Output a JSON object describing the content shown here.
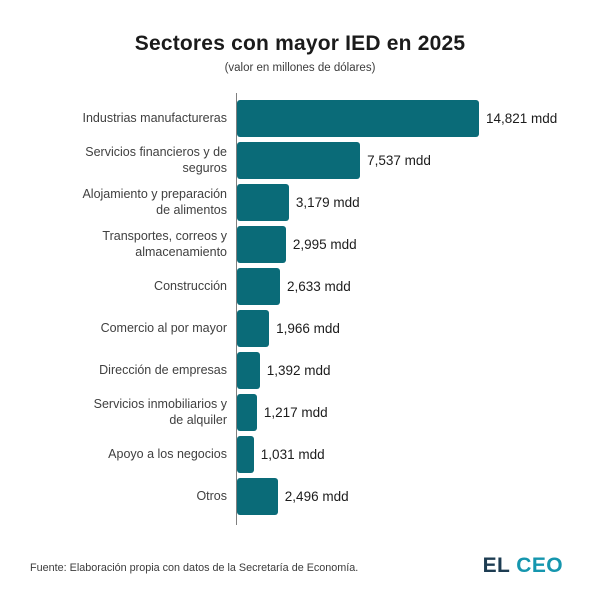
{
  "header": {
    "title": "Sectores con mayor IED en 2025",
    "subtitle": "(valor en millones de dólares)"
  },
  "chart_data": {
    "type": "bar",
    "orientation": "horizontal",
    "title": "Sectores con mayor IED en 2025",
    "subtitle": "(valor en millones de dólares)",
    "unit": "mdd (millones de dólares)",
    "xlim": [
      0,
      15000
    ],
    "grid": false,
    "legend": false,
    "bar_color": "#0A6B78",
    "axis_color": "#7f7f7f",
    "categories": [
      "Industrias manufactureras",
      "Servicios financieros y de seguros",
      "Alojamiento y preparación de alimentos",
      "Transportes, correos y almacenamiento",
      "Construcción",
      "Comercio al por mayor",
      "Dirección de empresas",
      "Servicios inmobiliarios y de alquiler",
      "Apoyo a los negocios",
      "Otros"
    ],
    "category_display": [
      "Industrias manufactureras",
      "Servicios financieros y de\nseguros",
      "Alojamiento y preparación\nde alimentos",
      "Transportes, correos y\nalmacenamiento",
      "Construcción",
      "Comercio al por mayor",
      "Dirección de empresas",
      "Servicios inmobiliarios y\nde alquiler",
      "Apoyo a los negocios",
      "Otros"
    ],
    "values": [
      14821,
      7537,
      3179,
      2995,
      2633,
      1966,
      1392,
      1217,
      1031,
      2496
    ],
    "value_labels": [
      "14,821 mdd",
      "7,537 mdd",
      "3,179 mdd",
      "2,995 mdd",
      "2,633 mdd",
      "1,966 mdd",
      "1,392 mdd",
      "1,217 mdd",
      "1,031 mdd",
      "2,496 mdd"
    ]
  },
  "footer": {
    "source": "Fuente: Elaboración propia con datos de la Secretaría de Economía.",
    "logo_el": "EL",
    "logo_ceo": "CEO",
    "logo_el_color": "#1D3C52",
    "logo_ceo_color": "#1596AE"
  }
}
